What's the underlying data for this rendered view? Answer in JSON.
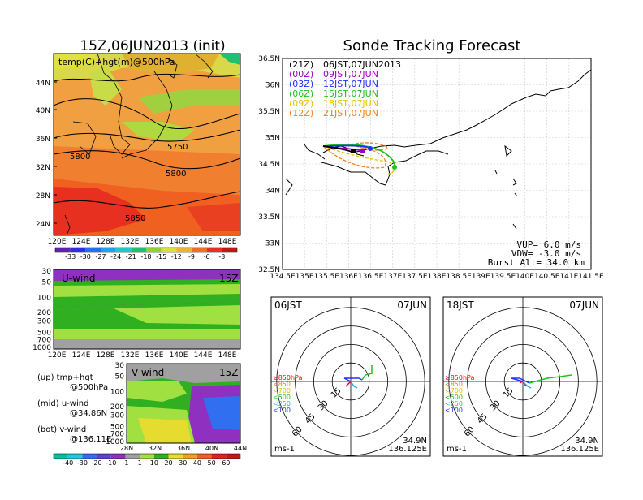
{
  "left_panel": {
    "title": "15Z,06JUN2013 (init)",
    "map_label": "temp(C)+hgt(m)@500hPa",
    "lat_ticks": [
      "44N",
      "40N",
      "36N",
      "32N",
      "28N",
      "24N"
    ],
    "lon_ticks": [
      "120E",
      "124E",
      "128E",
      "132E",
      "136E",
      "140E",
      "144E",
      "148E"
    ],
    "contour_labels": [
      "5750",
      "5800",
      "5800",
      "5850"
    ],
    "temp_colorbar": [
      "-33",
      "-30",
      "-27",
      "-24",
      "-21",
      "-18",
      "-15",
      "-12",
      "-9",
      "-6",
      "-3"
    ],
    "uwind_label": "U-wind",
    "uwind_time": "15Z",
    "pressure_ticks": [
      "30",
      "50",
      "100",
      "200",
      "300",
      "500",
      "700",
      "1000"
    ],
    "vwind_label": "V-wind",
    "vwind_time": "15Z",
    "vwind_lat_ticks": [
      "28N",
      "32N",
      "36N",
      "40N",
      "44N"
    ],
    "wind_colorbar": [
      "-40",
      "-30",
      "-20",
      "-10",
      "-1",
      "1",
      "10",
      "20",
      "30",
      "40",
      "50",
      "60"
    ],
    "legend": {
      "up": "(up) tmp+hgt",
      "up2": "@500hPa",
      "mid": "(mid) u-wind",
      "mid2": "@34.86N",
      "bot": "(bot) v-wind",
      "bot2": "@136.11E"
    }
  },
  "right_panel": {
    "title": "Sonde Tracking Forecast",
    "lat_ticks": [
      "36.5N",
      "36N",
      "35.5N",
      "35N",
      "34.5N",
      "34N",
      "33.5N",
      "33N",
      "32.5N"
    ],
    "lon_ticks": [
      "134.5E",
      "135E",
      "135.5E",
      "136E",
      "136.5E",
      "137E",
      "137.5E",
      "138E",
      "138.5E",
      "139E",
      "139.5E",
      "140E",
      "140.5E",
      "141E",
      "141.5E"
    ],
    "launches": [
      {
        "code": "(21Z)",
        "time": "06JST,07JUN2013",
        "color": "#000000"
      },
      {
        "code": "(00Z)",
        "time": "09JST,07JUN",
        "color": "#a000c0"
      },
      {
        "code": "(03Z)",
        "time": "12JST,07JUN",
        "color": "#2030ff"
      },
      {
        "code": "(06Z)",
        "time": "15JST,07JUN",
        "color": "#20c020"
      },
      {
        "code": "(09Z)",
        "time": "18JST,07JUN",
        "color": "#e6c200"
      },
      {
        "code": "(12Z)",
        "time": "21JST,07JUN",
        "color": "#f08020"
      }
    ],
    "params": {
      "vup": "VUP=  6.0 m/s",
      "vdw": "VDW= -3.0 m/s",
      "burst": "Burst Alt=  34.0 km"
    },
    "polar_left": {
      "time": "06JST",
      "date": "07JUN",
      "unit": "ms-1",
      "lat": "34.9N",
      "lon": "136.125E"
    },
    "polar_right": {
      "time": "18JST",
      "date": "07JUN",
      "unit": "ms-1",
      "lat": "34.9N",
      "lon": "136.125E"
    },
    "polar_ring_labels": [
      "15",
      "30",
      "45",
      "60"
    ],
    "polar_legend": [
      "≥850hPa",
      "<850",
      "<700",
      "<500",
      "<250",
      "<100"
    ],
    "polar_legend_colors": [
      "#ff0000",
      "#f08020",
      "#e6c200",
      "#20c020",
      "#20b0f0",
      "#2030ff"
    ]
  },
  "colors": {
    "temp_scale": [
      "#6020b0",
      "#3030e0",
      "#2070f0",
      "#20a0f0",
      "#20c8c8",
      "#20c070",
      "#90d030",
      "#d8e040",
      "#f0b030",
      "#f07020",
      "#e83020",
      "#c01818"
    ],
    "wind_scale": [
      "#00c0a0",
      "#20c8e0",
      "#3070f0",
      "#6040d0",
      "#9030c0",
      "#a0a0a0",
      "#a0e040",
      "#30b020",
      "#e6dc30",
      "#f0a020",
      "#f06020",
      "#e02020"
    ]
  }
}
